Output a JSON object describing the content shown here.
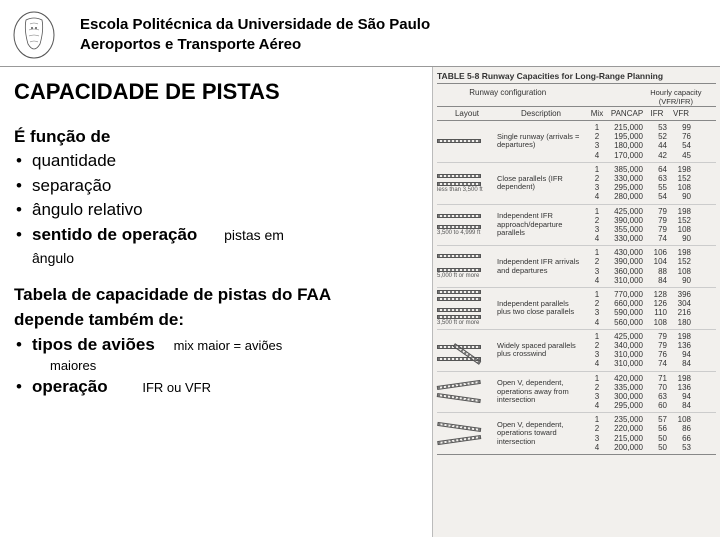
{
  "header": {
    "line1": "Escola Politécnica da Universidade de São Paulo",
    "line2": "Aeroportos e Transporte Aéreo"
  },
  "title": "CAPACIDADE DE PISTAS",
  "intro": "É função de",
  "bullets": [
    "quantidade",
    "separação",
    "ângulo relativo",
    "sentido de operação"
  ],
  "bullet4_note": "pistas em",
  "sub_note": "ângulo",
  "para2_l1": "Tabela de capacidade de pistas do FAA",
  "para2_l2": "depende também de:",
  "bullets2": {
    "item1": "tipos de aviões",
    "item1_note": "mix maior = aviões",
    "item1_note2": "maiores",
    "item2": "operação",
    "item2_note": "IFR ou VFR"
  },
  "table": {
    "caption": "TABLE 5-8  Runway Capacities for Long-Range Planning",
    "col_config": "Runway configuration",
    "col_layout": "Layout",
    "col_desc": "Description",
    "col_mix": "Mix",
    "col_pancap": "PANCAP",
    "col_ifr": "IFR",
    "col_vfr": "VFR",
    "hourly": "Hourly capacity (VFR/IFR)",
    "rows": [
      {
        "desc": "Single runway (arrivals = departures)",
        "layout": "single",
        "spacing": "",
        "data": [
          {
            "mix": "1",
            "pan": "215,000",
            "ifr": "53",
            "vfr": "99"
          },
          {
            "mix": "2",
            "pan": "195,000",
            "ifr": "52",
            "vfr": "76"
          },
          {
            "mix": "3",
            "pan": "180,000",
            "ifr": "44",
            "vfr": "54"
          },
          {
            "mix": "4",
            "pan": "170,000",
            "ifr": "42",
            "vfr": "45"
          }
        ]
      },
      {
        "desc": "Close parallels (IFR dependent)",
        "layout": "close-parallel",
        "spacing": "less than 3,500 ft",
        "data": [
          {
            "mix": "1",
            "pan": "385,000",
            "ifr": "64",
            "vfr": "198"
          },
          {
            "mix": "2",
            "pan": "330,000",
            "ifr": "63",
            "vfr": "152"
          },
          {
            "mix": "3",
            "pan": "295,000",
            "ifr": "55",
            "vfr": "108"
          },
          {
            "mix": "4",
            "pan": "280,000",
            "ifr": "54",
            "vfr": "90"
          }
        ]
      },
      {
        "desc": "Independent IFR approach/departure parallels",
        "layout": "med-parallel",
        "spacing": "3,500 to 4,999 ft",
        "data": [
          {
            "mix": "1",
            "pan": "425,000",
            "ifr": "79",
            "vfr": "198"
          },
          {
            "mix": "2",
            "pan": "390,000",
            "ifr": "79",
            "vfr": "152"
          },
          {
            "mix": "3",
            "pan": "355,000",
            "ifr": "79",
            "vfr": "108"
          },
          {
            "mix": "4",
            "pan": "330,000",
            "ifr": "74",
            "vfr": "90"
          }
        ]
      },
      {
        "desc": "Independent IFR arrivals and departures",
        "layout": "far-parallel",
        "spacing": "5,000 ft or more",
        "data": [
          {
            "mix": "1",
            "pan": "430,000",
            "ifr": "106",
            "vfr": "198"
          },
          {
            "mix": "2",
            "pan": "390,000",
            "ifr": "104",
            "vfr": "152"
          },
          {
            "mix": "3",
            "pan": "360,000",
            "ifr": "88",
            "vfr": "108"
          },
          {
            "mix": "4",
            "pan": "310,000",
            "ifr": "84",
            "vfr": "90"
          }
        ]
      },
      {
        "desc": "Independent parallels plus two close parallels",
        "layout": "quad",
        "spacing": "3,500 ft or more",
        "data": [
          {
            "mix": "1",
            "pan": "770,000",
            "ifr": "128",
            "vfr": "396"
          },
          {
            "mix": "2",
            "pan": "660,000",
            "ifr": "126",
            "vfr": "304"
          },
          {
            "mix": "3",
            "pan": "590,000",
            "ifr": "110",
            "vfr": "216"
          },
          {
            "mix": "4",
            "pan": "560,000",
            "ifr": "108",
            "vfr": "180"
          }
        ]
      },
      {
        "desc": "Widely spaced parallels plus crosswind",
        "layout": "parallel-cross",
        "spacing": "",
        "data": [
          {
            "mix": "1",
            "pan": "425,000",
            "ifr": "79",
            "vfr": "198"
          },
          {
            "mix": "2",
            "pan": "340,000",
            "ifr": "79",
            "vfr": "136"
          },
          {
            "mix": "3",
            "pan": "310,000",
            "ifr": "76",
            "vfr": "94"
          },
          {
            "mix": "4",
            "pan": "310,000",
            "ifr": "74",
            "vfr": "84"
          }
        ]
      },
      {
        "desc": "Open V, dependent, operations away from intersection",
        "layout": "open-v-away",
        "spacing": "",
        "data": [
          {
            "mix": "1",
            "pan": "420,000",
            "ifr": "71",
            "vfr": "198"
          },
          {
            "mix": "2",
            "pan": "335,000",
            "ifr": "70",
            "vfr": "136"
          },
          {
            "mix": "3",
            "pan": "300,000",
            "ifr": "63",
            "vfr": "94"
          },
          {
            "mix": "4",
            "pan": "295,000",
            "ifr": "60",
            "vfr": "84"
          }
        ]
      },
      {
        "desc": "Open V, dependent, operations toward intersection",
        "layout": "open-v-toward",
        "spacing": "",
        "data": [
          {
            "mix": "1",
            "pan": "235,000",
            "ifr": "57",
            "vfr": "108"
          },
          {
            "mix": "2",
            "pan": "220,000",
            "ifr": "56",
            "vfr": "86"
          },
          {
            "mix": "3",
            "pan": "215,000",
            "ifr": "50",
            "vfr": "66"
          },
          {
            "mix": "4",
            "pan": "200,000",
            "ifr": "50",
            "vfr": "53"
          }
        ]
      }
    ]
  },
  "colors": {
    "text": "#000000",
    "bg": "#ffffff",
    "table_bg": "#f2f0ed",
    "border": "#888888"
  }
}
